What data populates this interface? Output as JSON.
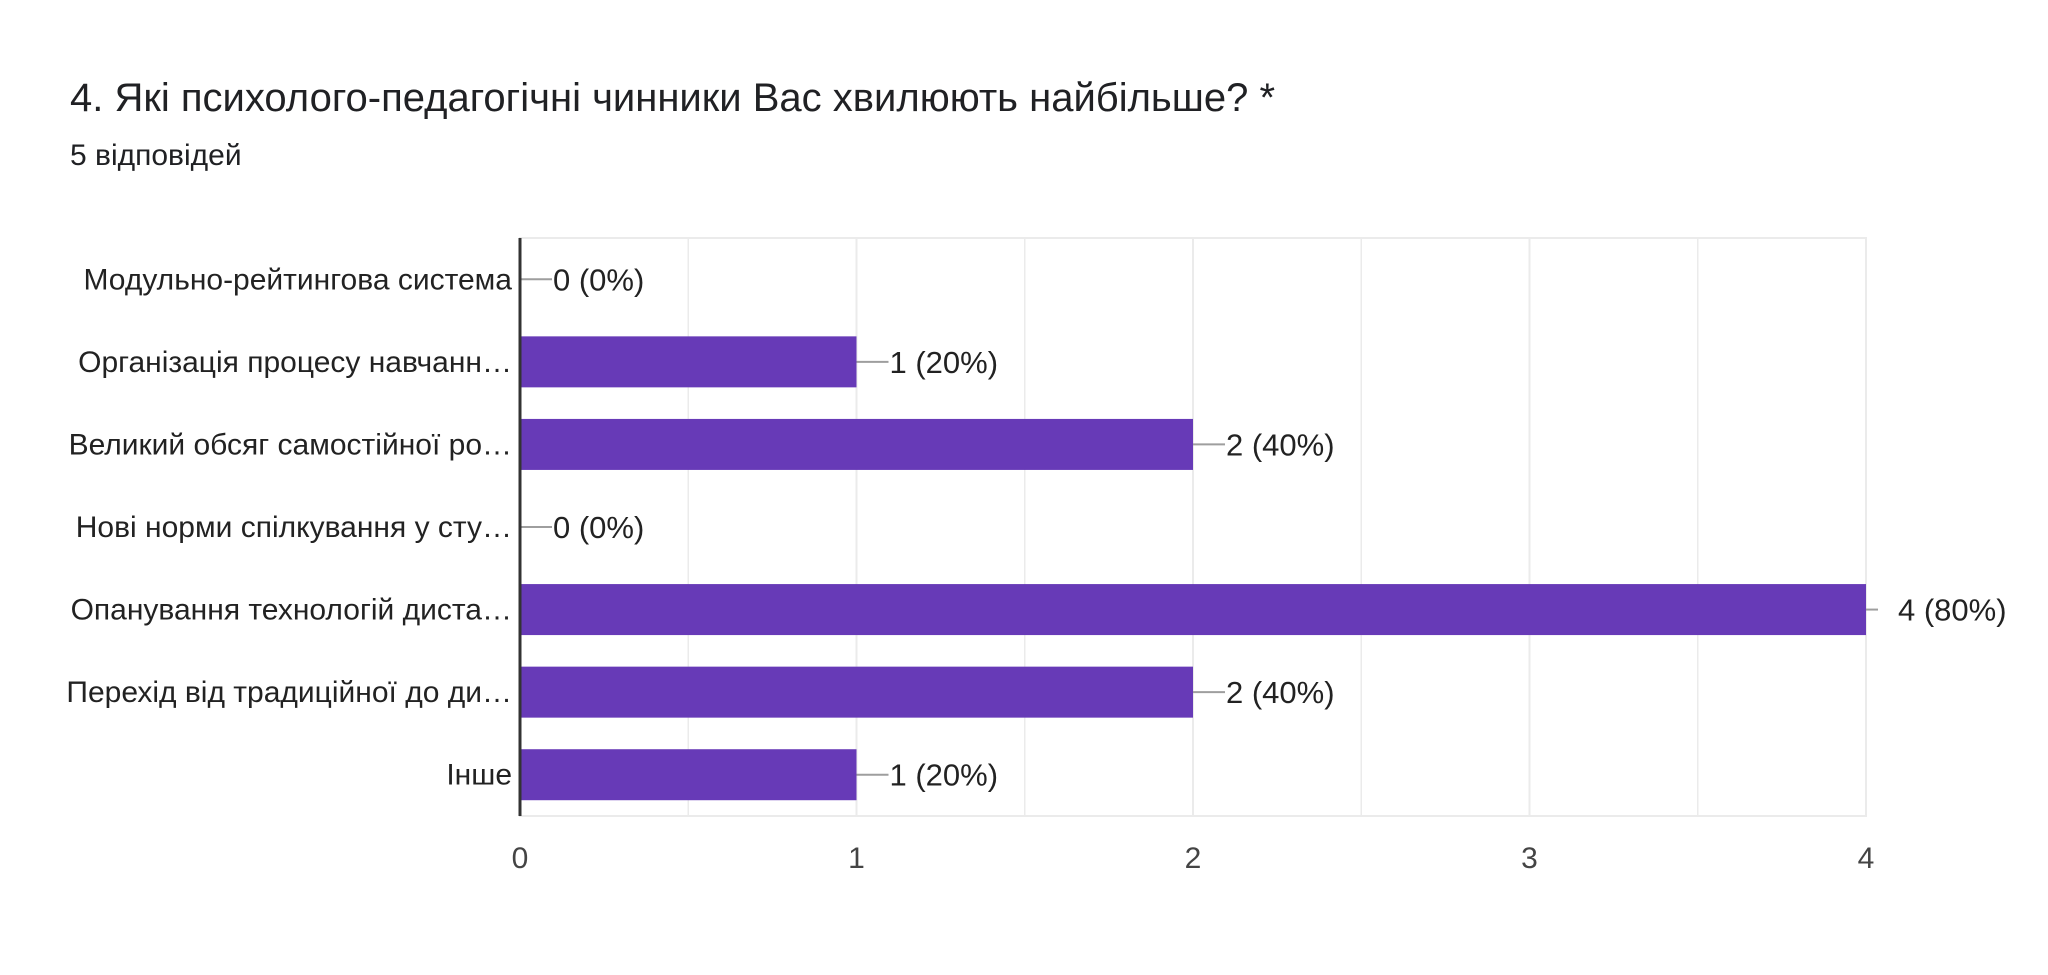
{
  "question": {
    "title": "4. Які психолого-педагогічні чинники Вас хвилюють найбільше? *",
    "responses": "5 відповідей"
  },
  "colors": {
    "bar": "#673ab7",
    "grid": "#ebebeb",
    "axis": "#333333",
    "text": "#222222",
    "tick": "#444444",
    "connector": "#9e9e9e"
  },
  "chart_data": {
    "type": "bar",
    "orientation": "horizontal",
    "categories": [
      "Модульно-рейтингова система",
      "Організація процесу навчанн…",
      "Великий обсяг самостійної ро…",
      "Нові норми спілкування у сту…",
      "Опанування технологій диста…",
      "Перехід від традиційної до ди…",
      "Інше"
    ],
    "values": [
      0,
      1,
      2,
      0,
      4,
      2,
      1
    ],
    "data_labels": [
      "0 (0%)",
      "1 (20%)",
      "2 (40%)",
      "0 (0%)",
      "4 (80%)",
      "2 (40%)",
      "1 (20%)"
    ],
    "xlim": [
      0,
      4
    ],
    "xticks": [
      0,
      1,
      2,
      3,
      4
    ],
    "xtick_labels": [
      "0",
      "1",
      "2",
      "3",
      "4"
    ],
    "grid": true,
    "legend": "none"
  }
}
